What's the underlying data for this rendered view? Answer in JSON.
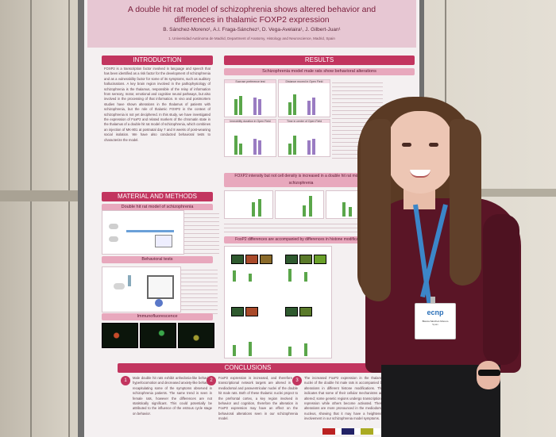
{
  "poster": {
    "title_line1": "A double hit rat model of schizophrenia shows altered  behavior and",
    "title_line2": "differences in thalamic FOXP2 expression",
    "authors": "B. Sánchez-Moreno¹, A.I. Fraga-Sánchez¹, D. Vega-Avelaira¹, J. Gilbert-Juan¹",
    "affiliation": "1. Universidad Autónoma de Madrid, Department of Anatomy, Histology and Neuroscience, Madrid, Spain",
    "sections": {
      "introduction": "INTRODUCTION",
      "results": "RESULTS",
      "methods": "MATERIAL AND METHODS",
      "conclusions": "CONCLUSIONS"
    },
    "subheaders": {
      "results_behavior": "Schizophrenia model male rats show behavioral alterations",
      "methods_model": "Double hit rat model of schizophrenia",
      "methods_behavior": "Behavioral tests",
      "methods_if": "Immunofluorescence",
      "results_foxp2": "FOXP2 intensity but not cell density is increased  in a double hit rat model of schizophrenia",
      "results_histone": "FoxP2 differences are accompanied by differences in histone modifications"
    },
    "figure_labels": {
      "sucrose": "Sucrose preference test",
      "distance": "Distance moved in Open Field",
      "immobility": "Immobility duration in Open Field",
      "time_center": "Time in center of Open Field"
    },
    "intro_text": "FOXP2 is a transcription factor involved in language and speech that has been identified as a risk factor for the development of schizophrenia and as a vulnerability factor for some of its symptoms, such as auditory hallucinations. A key brain region involved in the pathophysiology of schizophrenia is the thalamus, responsible of the relay of information from sensory, motor, emotional and cognitive neural pathways, but also involved in the processing of that information. In vivo and postmortem studies have shown alterations in the thalamus of patients with schizophrenia, but the role of thalamic FOXP2 in the context of schizophrenia is not yet deciphered. In this study, we have investigated the expression of FoxP2 and related markers of the chromatin state in the thalamus of a double hit rat model of schizophrenia, which combines an injection of MK-801 at postnatal day 7 and 8 weeks of post-weaning social isolation. We have also conducted behavioral tests to characterize the model.",
    "conclusions": [
      {
        "n": "1",
        "text": "Male double hit rats exhibit anhedonia-like behavior, hyperlocomotion and decreased anxiety-like behavior, recapitulating some of the symptoms observed in schizophrenia patients. The same trend is seen in female rats, however the differences are not statistically significant. This could potentially be attributed to the influence of the estrous cycle stage on behavior."
      },
      {
        "n": "2",
        "text": "FoxP2 expression is increased, and therefore its transcriptional network targets are altered in the mediodorsal and paraventricular nuclei of the double hit male rats. Both of these thalamic nuclei project to the prefrontal cortex, a key region involved in behavior and cognition, therefore the alteration in FoxP2 expression may have an effect on the behavioral alterations seen in our schizophrenia model."
      },
      {
        "n": "3",
        "text": "The increased FoxP2 expression in the thalamic nuclei of the double hit male rats is accompanied by alterations in different histone modifications. This indicates that some of their cellular mechanisms are altered; some genetic regions undergo transcriptional repression while others become activated. These alterations are more pronounced in the mediodorsal nucleus, showing that it may have a heightened involvement in our schizophrenia model symptoms."
      }
    ],
    "badge": {
      "brand": "ecnp",
      "line1": "Blanca Sánchez-Moreno",
      "line2": "Spain"
    }
  }
}
